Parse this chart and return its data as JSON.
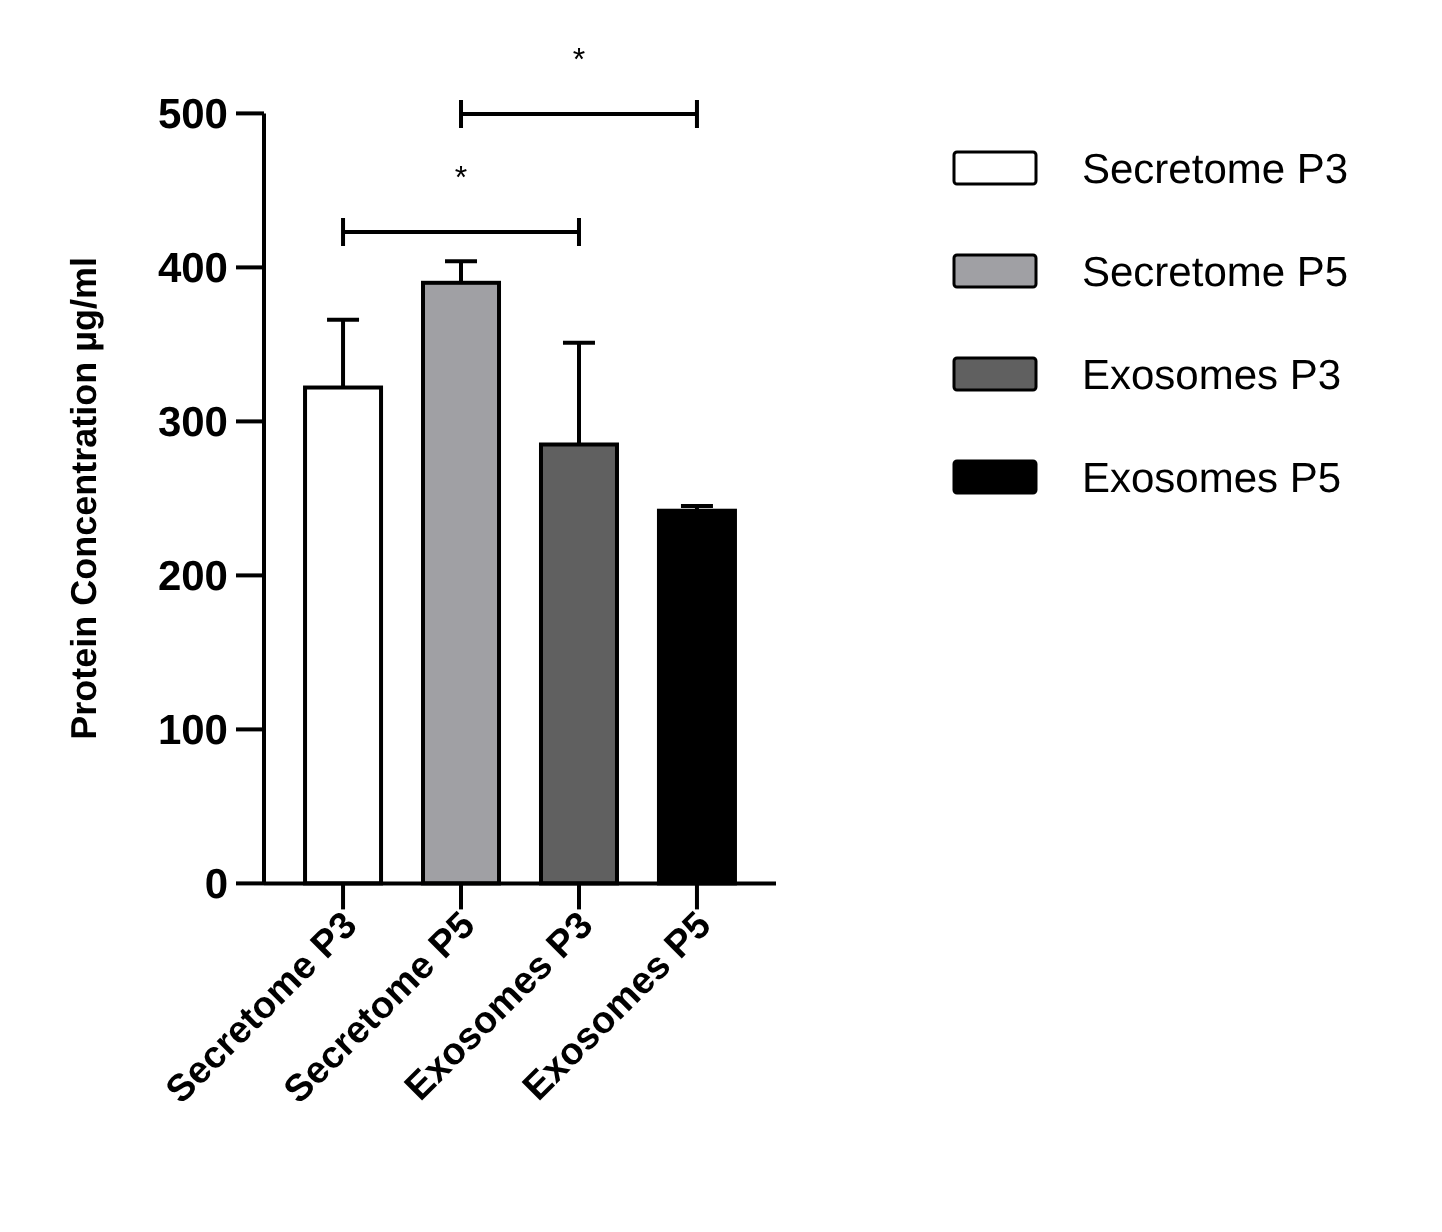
{
  "chart_data": {
    "type": "bar",
    "ylabel": "Protein Concentration µg/ml",
    "stacked": true,
    "categories": [
      "Secretome P3",
      "Secretome P5",
      "Exosomes P3",
      "Exosomes P5"
    ],
    "series": [
      {
        "name": "Secretome P3",
        "color": "#ffffff",
        "values": [
          322,
          null,
          null,
          null
        ],
        "errors": [
          [
            322,
            366
          ],
          null,
          null,
          null
        ]
      },
      {
        "name": "Secretome P5",
        "color": "#a0a0a4",
        "values": [
          null,
          390,
          null,
          null
        ],
        "errors": [
          null,
          [
            390,
            404
          ],
          null,
          null
        ]
      },
      {
        "name": "Exosomes P3",
        "color": "#606060",
        "values": [
          null,
          null,
          285,
          null
        ],
        "errors": [
          null,
          null,
          [
            285,
            351
          ],
          null
        ]
      },
      {
        "name": "Exosomes P5",
        "color": "#000000",
        "values": [
          null,
          null,
          null,
          242
        ],
        "errors": [
          null,
          null,
          null,
          [
            242,
            245
          ]
        ]
      }
    ],
    "ylim": [
      0,
      500
    ],
    "yticks": [
      0,
      100,
      200,
      300,
      400,
      500
    ],
    "grid": false,
    "legend": "right",
    "annotations": [
      "*",
      "*"
    ]
  }
}
